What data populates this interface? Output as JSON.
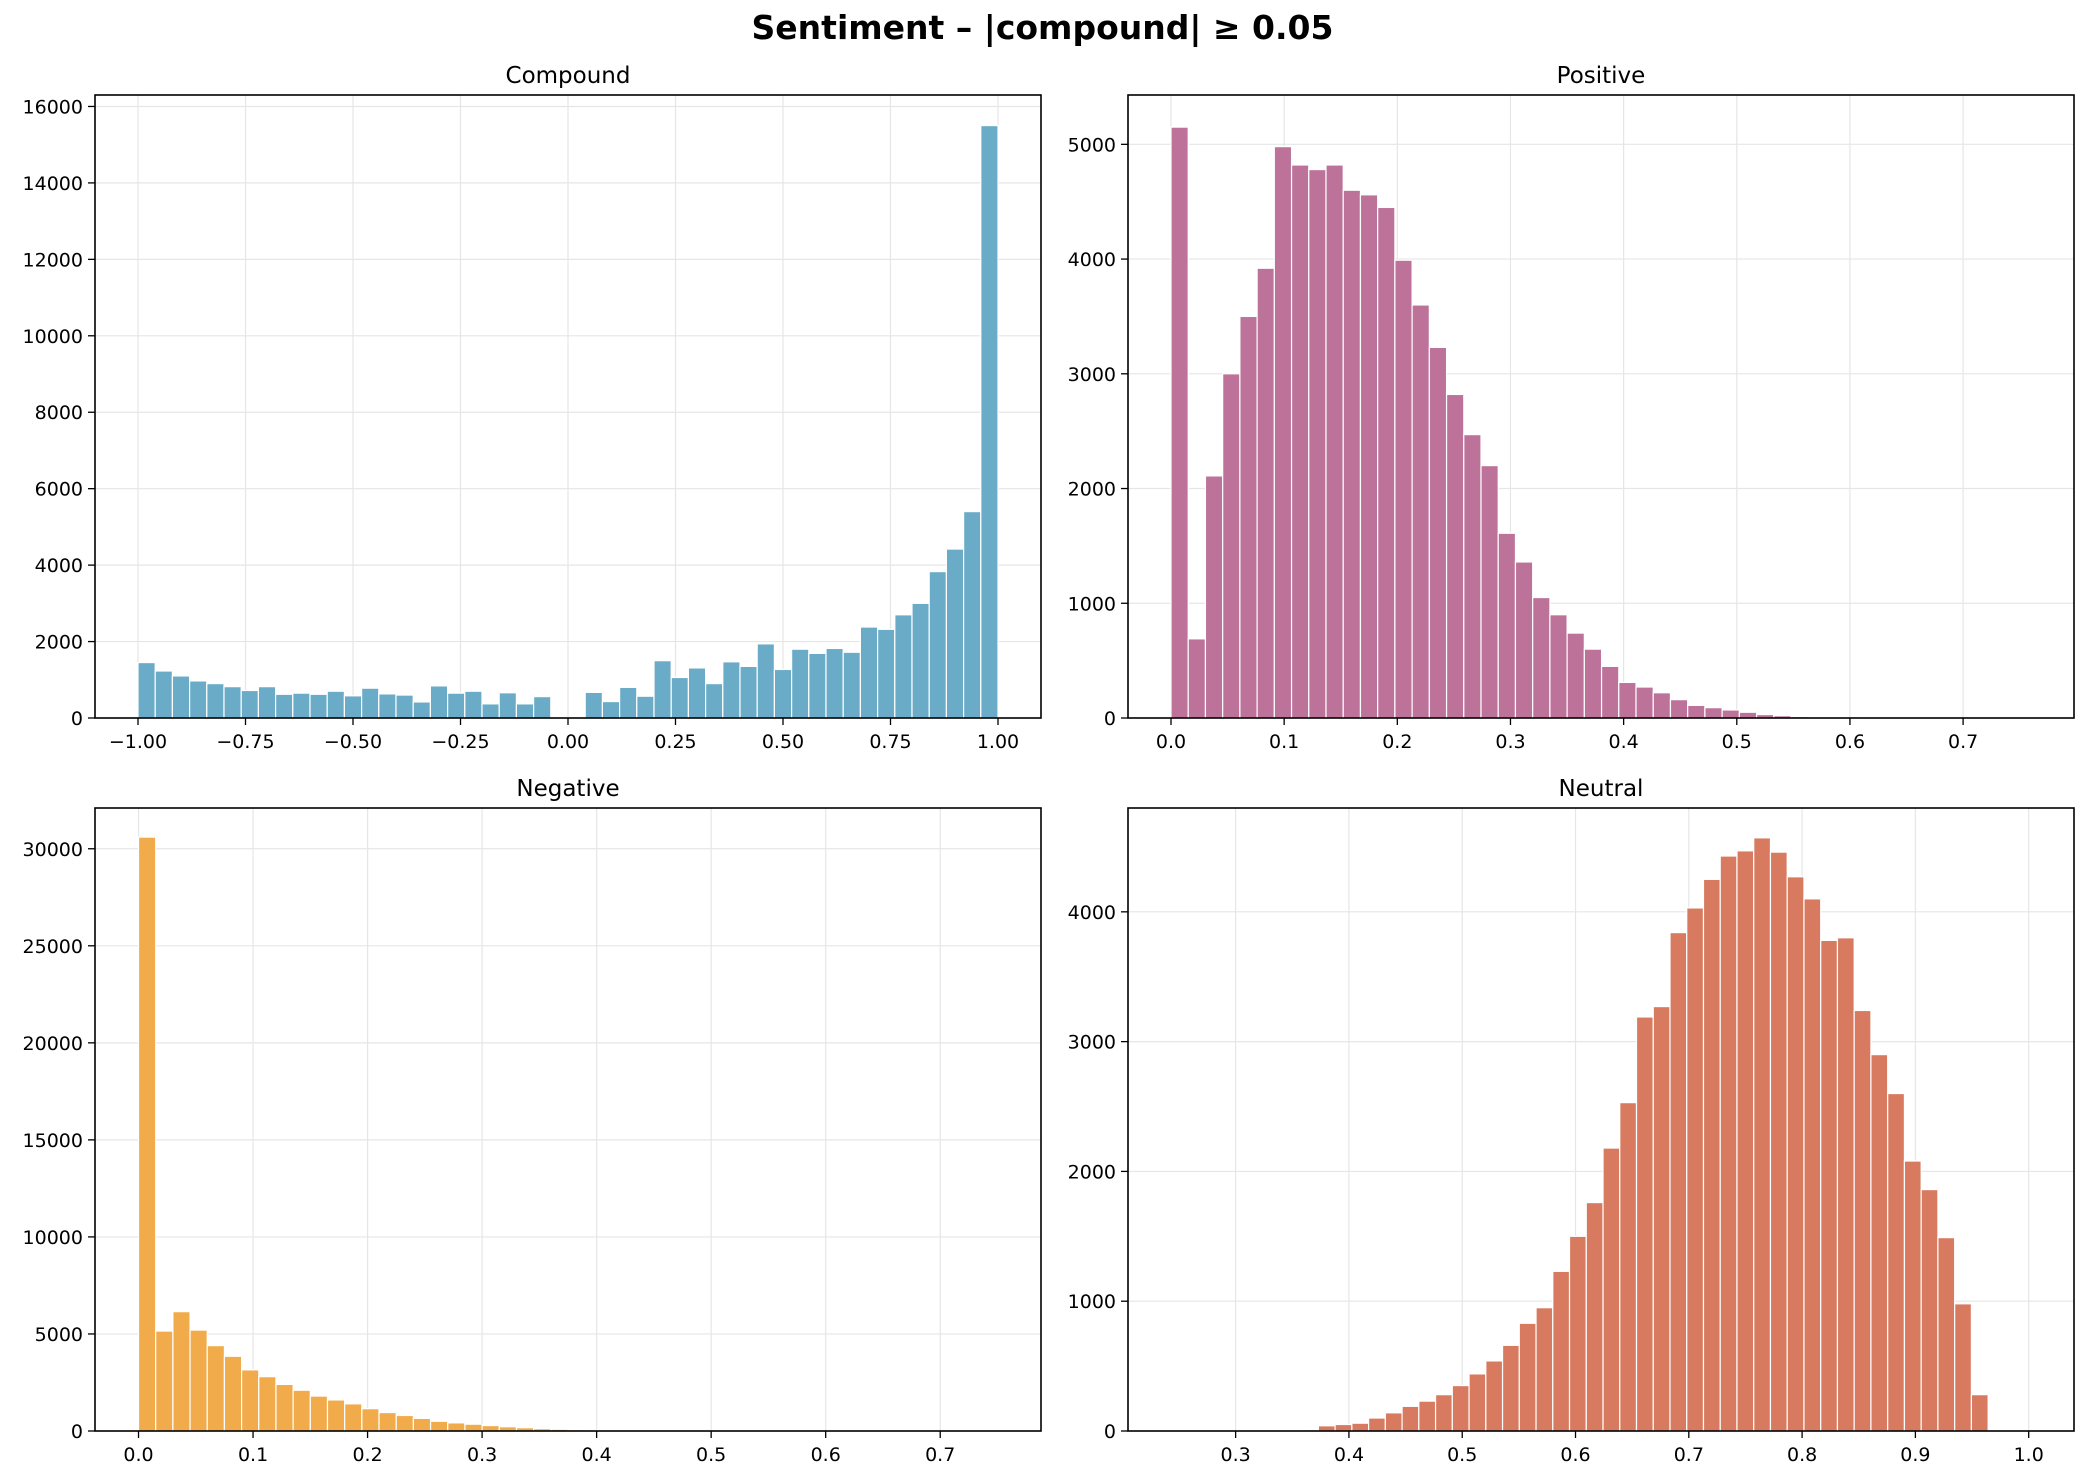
{
  "title": "Sentiment – |compound| ≥ 0.05",
  "colors": {
    "compound": "#6aabc7",
    "positive": "#bc7299",
    "negative": "#f2ab4a",
    "neutral": "#d77a5f",
    "grid": "#e6e6e6"
  },
  "chart_data": [
    {
      "type": "bar",
      "title": "Compound",
      "xlim": [
        -1.1,
        1.1
      ],
      "ylim": [
        0,
        16300
      ],
      "xticks": [
        -1.0,
        -0.75,
        -0.5,
        -0.25,
        0.0,
        0.25,
        0.5,
        0.75,
        1.0
      ],
      "xtick_labels": [
        "−1.00",
        "−0.75",
        "−0.50",
        "−0.25",
        "0.00",
        "0.25",
        "0.50",
        "0.75",
        "1.00"
      ],
      "yticks": [
        0,
        2000,
        4000,
        6000,
        8000,
        10000,
        12000,
        14000,
        16000
      ],
      "ytick_labels": [
        "0",
        "2000",
        "4000",
        "6000",
        "8000",
        "10000",
        "12000",
        "14000",
        "16000"
      ],
      "grid": true,
      "bin_start": -1.0,
      "bin_width": 0.04,
      "values": [
        1450,
        1230,
        1100,
        970,
        900,
        820,
        720,
        820,
        620,
        650,
        620,
        700,
        580,
        780,
        630,
        600,
        420,
        840,
        650,
        700,
        370,
        660,
        370,
        560,
        0,
        0,
        670,
        430,
        800,
        570,
        1500,
        1060,
        1310,
        900,
        1470,
        1350,
        1940,
        1270,
        1800,
        1690,
        1820,
        1720,
        2380,
        2320,
        2700,
        3000,
        3830,
        4420,
        5400,
        15500
      ],
      "color_key": "compound"
    },
    {
      "type": "bar",
      "title": "Positive",
      "xlim": [
        -0.038,
        0.798
      ],
      "ylim": [
        0,
        5430
      ],
      "xticks": [
        0.0,
        0.1,
        0.2,
        0.3,
        0.4,
        0.5,
        0.6,
        0.7
      ],
      "xtick_labels": [
        "0.0",
        "0.1",
        "0.2",
        "0.3",
        "0.4",
        "0.5",
        "0.6",
        "0.7"
      ],
      "yticks": [
        0,
        1000,
        2000,
        3000,
        4000,
        5000
      ],
      "ytick_labels": [
        "0",
        "1000",
        "2000",
        "3000",
        "4000",
        "5000"
      ],
      "grid": true,
      "bin_start": 0.0,
      "bin_width": 0.01522,
      "values": [
        5150,
        690,
        2110,
        3000,
        3500,
        3920,
        4980,
        4820,
        4780,
        4820,
        4600,
        4560,
        4450,
        3990,
        3600,
        3230,
        2820,
        2470,
        2200,
        1610,
        1360,
        1050,
        900,
        740,
        600,
        450,
        310,
        270,
        220,
        160,
        110,
        90,
        70,
        50,
        30,
        20,
        12,
        8,
        5,
        3,
        2,
        1,
        1,
        1,
        0,
        0,
        0,
        0,
        0,
        0
      ],
      "color_key": "positive"
    },
    {
      "type": "bar",
      "title": "Negative",
      "xlim": [
        -0.038,
        0.788
      ],
      "ylim": [
        0,
        32100
      ],
      "xticks": [
        0.0,
        0.1,
        0.2,
        0.3,
        0.4,
        0.5,
        0.6,
        0.7
      ],
      "xtick_labels": [
        "0.0",
        "0.1",
        "0.2",
        "0.3",
        "0.4",
        "0.5",
        "0.6",
        "0.7"
      ],
      "yticks": [
        0,
        5000,
        10000,
        15000,
        20000,
        25000,
        30000
      ],
      "ytick_labels": [
        "0",
        "5000",
        "10000",
        "15000",
        "20000",
        "25000",
        "30000"
      ],
      "grid": true,
      "bin_start": 0.0,
      "bin_width": 0.015,
      "values": [
        30600,
        5150,
        6150,
        5200,
        4400,
        3850,
        3150,
        2800,
        2400,
        2100,
        1800,
        1600,
        1400,
        1150,
        950,
        800,
        650,
        500,
        420,
        350,
        280,
        220,
        170,
        120,
        90,
        70,
        50,
        40,
        30,
        25,
        20,
        15,
        10,
        8,
        6,
        5,
        4,
        3,
        2,
        2,
        1,
        1,
        1,
        1,
        0,
        0,
        0,
        0,
        0,
        0
      ],
      "color_key": "negative"
    },
    {
      "type": "bar",
      "title": "Neutral",
      "xlim": [
        0.205,
        1.04
      ],
      "ylim": [
        0,
        4800
      ],
      "xticks": [
        0.3,
        0.4,
        0.5,
        0.6,
        0.7,
        0.8,
        0.9,
        1.0
      ],
      "xtick_labels": [
        "0.3",
        "0.4",
        "0.5",
        "0.6",
        "0.7",
        "0.8",
        "0.9",
        "1.0"
      ],
      "yticks": [
        0,
        1000,
        2000,
        3000,
        4000
      ],
      "ytick_labels": [
        "0",
        "1000",
        "2000",
        "3000",
        "4000"
      ],
      "grid": true,
      "bin_start": 0.24,
      "bin_width": 0.01478,
      "values": [
        1,
        1,
        1,
        1,
        1,
        2,
        3,
        5,
        10,
        40,
        50,
        60,
        100,
        140,
        190,
        230,
        280,
        350,
        440,
        540,
        660,
        830,
        950,
        1230,
        1500,
        1760,
        2180,
        2530,
        3190,
        3270,
        3840,
        4030,
        4250,
        4430,
        4470,
        4570,
        4460,
        4270,
        4100,
        3780,
        3800,
        3240,
        2900,
        2600,
        2080,
        1860,
        1490,
        980,
        280
      ],
      "color_key": "neutral"
    }
  ]
}
